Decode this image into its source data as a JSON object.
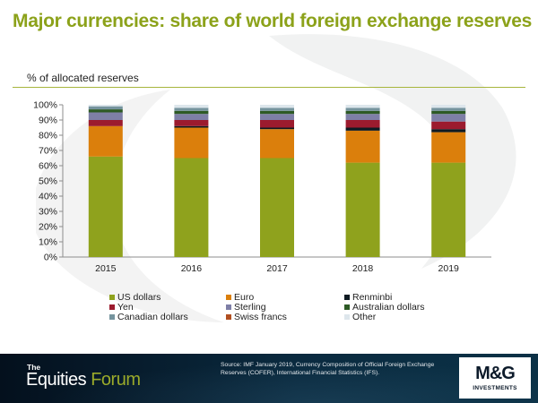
{
  "slide": {
    "title": "Major currencies: share of world foreign exchange reserves"
  },
  "chart_data": {
    "type": "bar",
    "stacked": true,
    "subtitle": "% of allocated  reserves",
    "categories": [
      "2015",
      "2016",
      "2017",
      "2018",
      "2019"
    ],
    "ylim": [
      0,
      100
    ],
    "yticks": [
      "0%",
      "10%",
      "20%",
      "30%",
      "40%",
      "50%",
      "60%",
      "70%",
      "80%",
      "90%",
      "100%"
    ],
    "grid": false,
    "legend_position": "bottom",
    "series": [
      {
        "name": "US dollars",
        "color": "#8fa21d",
        "values": [
          66,
          65,
          65,
          62,
          62
        ]
      },
      {
        "name": "Euro",
        "color": "#db7f0c",
        "values": [
          20,
          20,
          19,
          21,
          20
        ]
      },
      {
        "name": "Renminbi",
        "color": "#0f1a22",
        "values": [
          0,
          1,
          1,
          2,
          2
        ]
      },
      {
        "name": "Yen",
        "color": "#9c1b2e",
        "values": [
          4,
          4,
          5,
          5,
          5
        ]
      },
      {
        "name": "Sterling",
        "color": "#7e7fa6",
        "values": [
          5,
          4,
          4,
          4,
          5
        ]
      },
      {
        "name": "Australian dollars",
        "color": "#2e5a25",
        "values": [
          2,
          2,
          2,
          2,
          2
        ]
      },
      {
        "name": "Canadian dollars",
        "color": "#76949e",
        "values": [
          2,
          2,
          2,
          2,
          2
        ]
      },
      {
        "name": "Swiss francs",
        "color": "#b14f21",
        "values": [
          0,
          0,
          0,
          0,
          0
        ]
      },
      {
        "name": "Other",
        "color": "#dde6ec",
        "values": [
          1,
          2,
          2,
          2,
          2
        ]
      }
    ]
  },
  "footer": {
    "brand_small": "The",
    "brand_main": "Equities ",
    "brand_forum": "Forum",
    "source": "Source: IMF January 2019, Currency Composition of Official Foreign Exchange Reserves (COFER), International Financial Statistics (IFS).",
    "logo_main": "M&G",
    "logo_sub": "INVESTMENTS"
  }
}
